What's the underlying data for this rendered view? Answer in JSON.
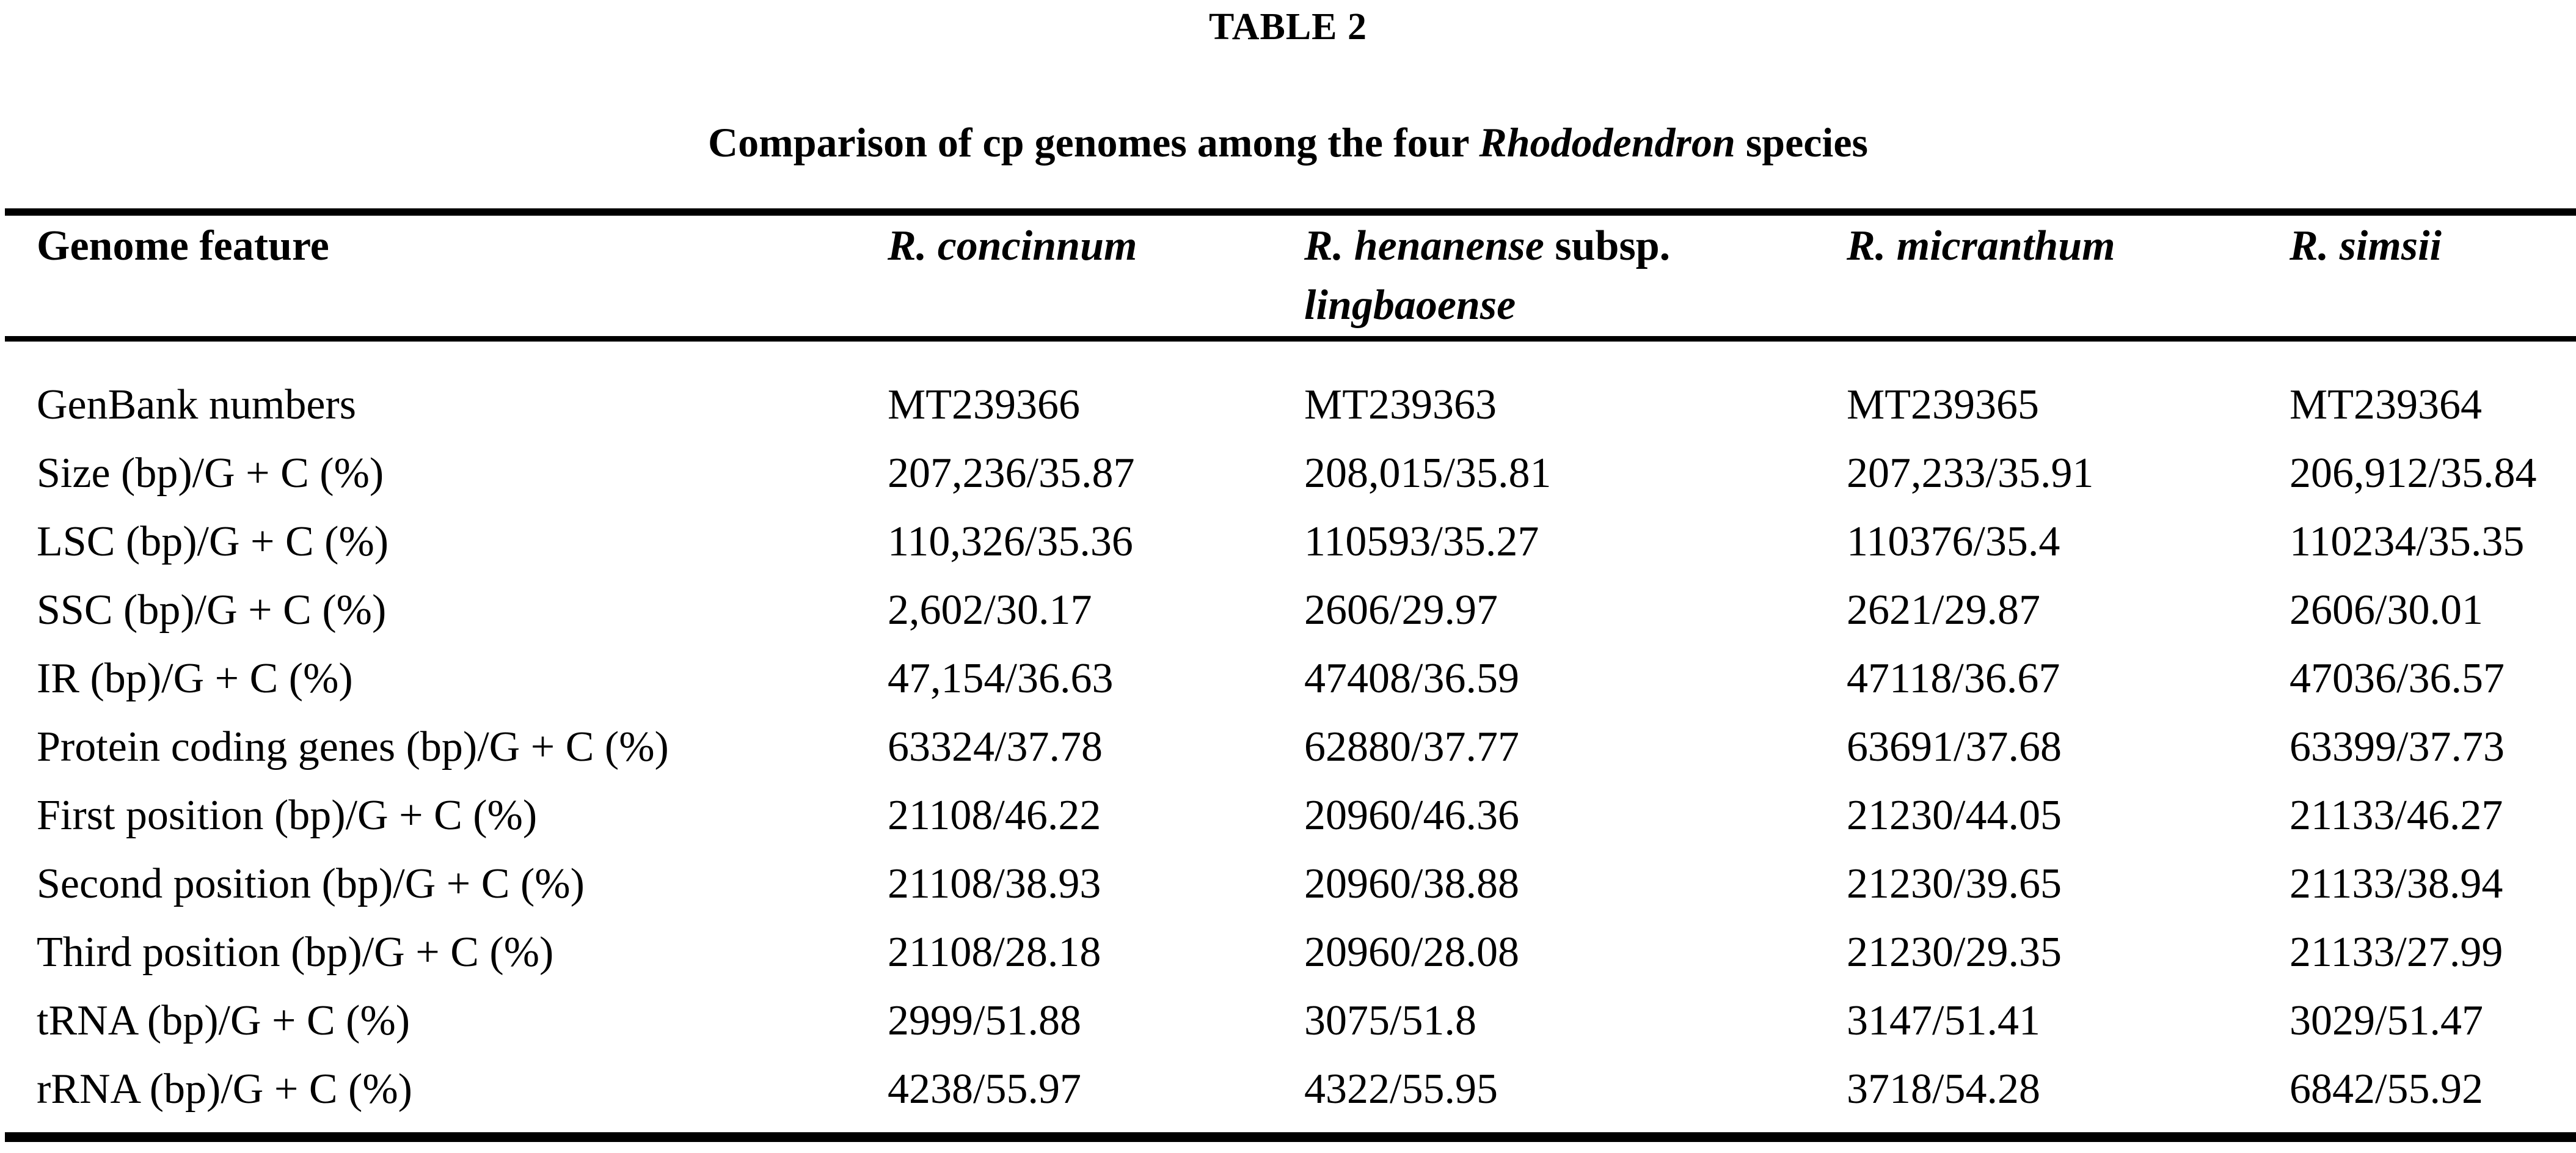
{
  "page": {
    "table_label": "TABLE 2",
    "caption": {
      "prefix": "Comparison of cp genomes among the four ",
      "genus": "Rhododendron",
      "suffix": " species"
    }
  },
  "colors": {
    "text": "#000000",
    "background": "#ffffff",
    "rule": "#000000"
  },
  "table": {
    "columns": [
      {
        "id": "genome-feature",
        "parts": [
          {
            "text": "Genome feature",
            "italic": false
          }
        ]
      },
      {
        "id": "r-concinnum",
        "parts": [
          {
            "text": "R. concinnum",
            "italic": true
          }
        ]
      },
      {
        "id": "r-henanense-subsp-lingbaoense",
        "parts": [
          {
            "text": "R. henanense",
            "italic": true
          },
          {
            "text": " subsp. ",
            "italic": false
          },
          {
            "text": "lingbaoense",
            "italic": true
          }
        ]
      },
      {
        "id": "r-micranthum",
        "parts": [
          {
            "text": "R. micranthum",
            "italic": true
          }
        ]
      },
      {
        "id": "r-simsii",
        "parts": [
          {
            "text": "R. simsii",
            "italic": true
          }
        ]
      }
    ],
    "rows": [
      {
        "feature": "GenBank numbers",
        "values": [
          "MT239366",
          "MT239363",
          "MT239365",
          "MT239364"
        ]
      },
      {
        "feature": "Size (bp)/G + C (%)",
        "values": [
          "207,236/35.87",
          "208,015/35.81",
          "207,233/35.91",
          "206,912/35.84"
        ]
      },
      {
        "feature": "LSC (bp)/G + C (%)",
        "values": [
          "110,326/35.36",
          "110593/35.27",
          "110376/35.4",
          "110234/35.35"
        ]
      },
      {
        "feature": "SSC (bp)/G + C (%)",
        "values": [
          "2,602/30.17",
          "2606/29.97",
          "2621/29.87",
          "2606/30.01"
        ]
      },
      {
        "feature": "IR (bp)/G + C (%)",
        "values": [
          "47,154/36.63",
          "47408/36.59",
          "47118/36.67",
          "47036/36.57"
        ]
      },
      {
        "feature": "Protein coding genes (bp)/G + C (%)",
        "values": [
          "63324/37.78",
          "62880/37.77",
          "63691/37.68",
          "63399/37.73"
        ]
      },
      {
        "feature": "First position (bp)/G + C (%)",
        "values": [
          "21108/46.22",
          "20960/46.36",
          "21230/44.05",
          "21133/46.27"
        ]
      },
      {
        "feature": "Second position (bp)/G + C (%)",
        "values": [
          "21108/38.93",
          "20960/38.88",
          "21230/39.65",
          "21133/38.94"
        ]
      },
      {
        "feature": "Third position (bp)/G + C (%)",
        "values": [
          "21108/28.18",
          "20960/28.08",
          "21230/29.35",
          "21133/27.99"
        ]
      },
      {
        "feature": "tRNA (bp)/G + C (%)",
        "values": [
          "2999/51.88",
          "3075/51.8",
          "3147/51.41",
          "3029/51.47"
        ]
      },
      {
        "feature": "rRNA (bp)/G + C (%)",
        "values": [
          "4238/55.97",
          "4322/55.95",
          "3718/54.28",
          "6842/55.92"
        ]
      }
    ]
  }
}
